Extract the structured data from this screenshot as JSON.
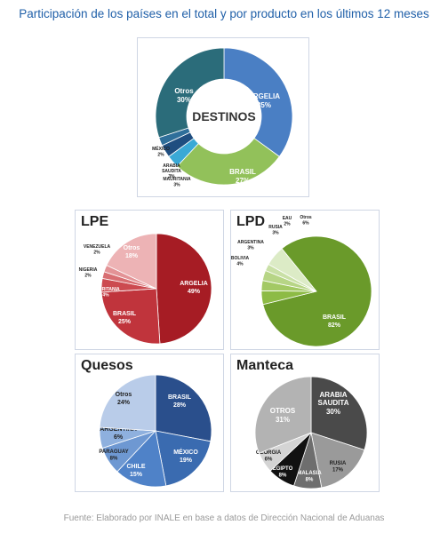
{
  "title": "Participación de los países en el total y por producto en los últimos 12 meses",
  "source": "Fuente: Elaborado por INALE en base a datos de Dirección Nacional de Aduanas",
  "chart_data": [
    {
      "type": "pie",
      "variant": "donut",
      "title": "DESTINOS",
      "slices": [
        {
          "name": "ARGELIA",
          "pct_label": "35%",
          "value": 35,
          "color": "#4a7fc4"
        },
        {
          "name": "BRASIL",
          "pct_label": "27%",
          "value": 27,
          "color": "#92c15a"
        },
        {
          "name": "MAURITANIA",
          "pct_label": "3%",
          "value": 3,
          "color": "#3aa9d6"
        },
        {
          "name": "ARABIA SAUDITA",
          "pct_label": "3%",
          "value": 3,
          "color": "#1f4e80"
        },
        {
          "name": "MÉXICO",
          "pct_label": "2%",
          "value": 2,
          "color": "#2f6f9a"
        },
        {
          "name": "Otros",
          "pct_label": "30%",
          "value": 30,
          "color": "#2b6c7a"
        }
      ]
    },
    {
      "type": "pie",
      "title": "LPE",
      "slices": [
        {
          "name": "ARGELIA",
          "pct_label": "49%",
          "value": 49,
          "color": "#a61c24"
        },
        {
          "name": "BRASIL",
          "pct_label": "25%",
          "value": 25,
          "color": "#c0343c"
        },
        {
          "name": "MAURITANIA",
          "pct_label": "4%",
          "value": 4,
          "color": "#cc4a50"
        },
        {
          "name": "NIGERIA",
          "pct_label": "2%",
          "value": 2,
          "color": "#d86e72"
        },
        {
          "name": "VENEZUELA",
          "pct_label": "2%",
          "value": 2,
          "color": "#e39396"
        },
        {
          "name": "Otros",
          "pct_label": "18%",
          "value": 18,
          "color": "#edb3b5"
        }
      ]
    },
    {
      "type": "pie",
      "title": "LPD",
      "slices": [
        {
          "name": "BRASIL",
          "pct_label": "82%",
          "value": 82,
          "color": "#6a9a2a"
        },
        {
          "name": "BOLIVIA",
          "pct_label": "4%",
          "value": 4,
          "color": "#8dbb45"
        },
        {
          "name": "ARGENTINA",
          "pct_label": "3%",
          "value": 3,
          "color": "#a3c964"
        },
        {
          "name": "RUSIA",
          "pct_label": "3%",
          "value": 3,
          "color": "#b7d586"
        },
        {
          "name": "EAU",
          "pct_label": "2%",
          "value": 2,
          "color": "#c9e0a6"
        },
        {
          "name": "Otros",
          "pct_label": "6%",
          "value": 6,
          "color": "#dcebc6"
        }
      ]
    },
    {
      "type": "pie",
      "title": "Quesos",
      "slices": [
        {
          "name": "BRASIL",
          "pct_label": "28%",
          "value": 28,
          "color": "#2a4f8c"
        },
        {
          "name": "MÉXICO",
          "pct_label": "19%",
          "value": 19,
          "color": "#3a6bb0"
        },
        {
          "name": "CHILE",
          "pct_label": "15%",
          "value": 15,
          "color": "#4f82c8"
        },
        {
          "name": "PARAGUAY",
          "pct_label": "8%",
          "value": 8,
          "color": "#6e98d2"
        },
        {
          "name": "ARGENTINA",
          "pct_label": "6%",
          "value": 6,
          "color": "#8eb0de"
        },
        {
          "name": "Otros",
          "pct_label": "24%",
          "value": 24,
          "color": "#b9cce9"
        }
      ]
    },
    {
      "type": "pie",
      "title": "Manteca",
      "slices": [
        {
          "name": "ARABIA SAUDITA",
          "pct_label": "30%",
          "value": 30,
          "color": "#4a4a4a"
        },
        {
          "name": "RUSIA",
          "pct_label": "17%",
          "value": 17,
          "color": "#9a9a9a"
        },
        {
          "name": "MALASIA",
          "pct_label": "8%",
          "value": 8,
          "color": "#6e6e6e"
        },
        {
          "name": "EGIPTO",
          "pct_label": "8%",
          "value": 8,
          "color": "#111111"
        },
        {
          "name": "GEORGIA",
          "pct_label": "6%",
          "value": 6,
          "color": "#d4d4d4"
        },
        {
          "name": "OTROS",
          "pct_label": "31%",
          "value": 31,
          "color": "#b3b3b3"
        }
      ]
    }
  ]
}
